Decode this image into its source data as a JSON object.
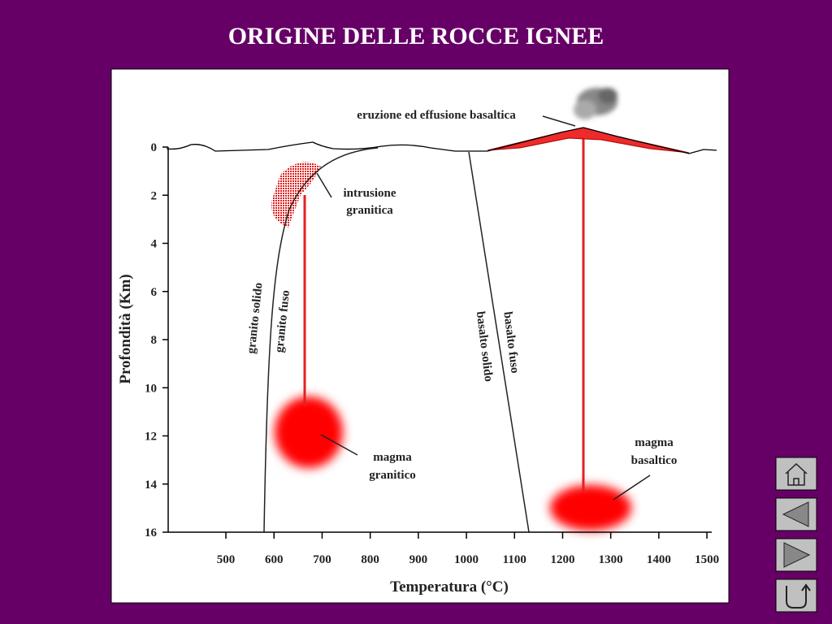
{
  "title": "ORIGINE DELLE ROCCE IGNEE",
  "x_axis": {
    "label": "Temperatura  (°C)",
    "lim": [
      380,
      1510
    ],
    "ticks": [
      500,
      600,
      700,
      800,
      900,
      1000,
      1100,
      1200,
      1300,
      1400,
      1500
    ]
  },
  "y_axis": {
    "label": "Profondità  (Km)",
    "lim": [
      0,
      16
    ],
    "ticks": [
      0,
      2,
      4,
      6,
      8,
      10,
      12,
      14,
      16
    ]
  },
  "labels": {
    "eruption": "eruzione ed effusione basaltica",
    "intrusion": [
      "intrusione",
      "granitica"
    ],
    "granite_magma": [
      "magma",
      "granitico"
    ],
    "basalt_magma": [
      "magma",
      "basaltico"
    ],
    "granite_solid": "granito solido",
    "granite_melt": "granito fuso",
    "basalt_melt": "basalto fuso",
    "basalt_solid": "basalto solido"
  }
}
